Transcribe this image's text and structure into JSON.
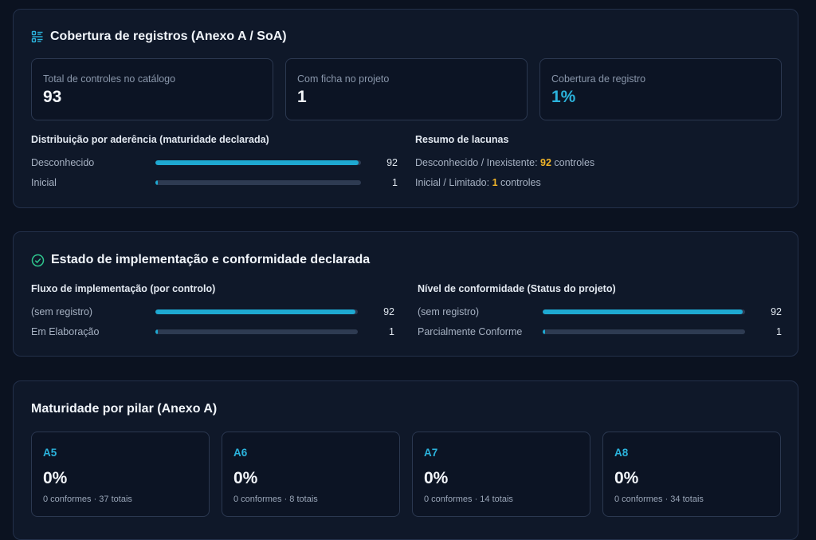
{
  "coverage": {
    "title": "Cobertura de registros (Anexo A / SoA)",
    "stats": [
      {
        "label": "Total de controles no catálogo",
        "value": "93"
      },
      {
        "label": "Com ficha no projeto",
        "value": "1"
      },
      {
        "label": "Cobertura de registro",
        "value": "1%"
      }
    ],
    "distribution": {
      "title": "Distribuição por aderência (maturidade declarada)",
      "rows": [
        {
          "label": "Desconhecido",
          "count": "92",
          "fraction": 0.99
        },
        {
          "label": "Inicial",
          "count": "1",
          "fraction": 0.01
        }
      ]
    },
    "gaps": {
      "title": "Resumo de lacunas",
      "lines": [
        {
          "prefix": "Desconhecido / Inexistente: ",
          "count": "92",
          "suffix": " controles"
        },
        {
          "prefix": "Inicial / Limitado: ",
          "count": "1",
          "suffix": " controles"
        }
      ]
    }
  },
  "implementation": {
    "title": "Estado de implementação e conformidade declarada",
    "flow": {
      "title": "Fluxo de implementação (por controlo)",
      "rows": [
        {
          "label": "(sem registro)",
          "count": "92",
          "fraction": 0.99
        },
        {
          "label": "Em Elaboração",
          "count": "1",
          "fraction": 0.01
        }
      ]
    },
    "compliance": {
      "title": "Nível de conformidade (Status do projeto)",
      "rows": [
        {
          "label": "(sem registro)",
          "count": "92",
          "fraction": 0.99
        },
        {
          "label": "Parcialmente Conforme",
          "count": "1",
          "fraction": 0.01
        }
      ]
    }
  },
  "maturity": {
    "title": "Maturidade por pilar (Anexo A)",
    "pillars": [
      {
        "code": "A5",
        "pct": "0%",
        "sub": "0 conformes · 37 totais"
      },
      {
        "code": "A6",
        "pct": "0%",
        "sub": "0 conformes · 8 totais"
      },
      {
        "code": "A7",
        "pct": "0%",
        "sub": "0 conformes · 14 totais"
      },
      {
        "code": "A8",
        "pct": "0%",
        "sub": "0 conformes · 34 totais"
      }
    ]
  },
  "colors": {
    "accent": "#1ea9d2",
    "highlight": "#f0b429",
    "track": "#2e3b52"
  }
}
